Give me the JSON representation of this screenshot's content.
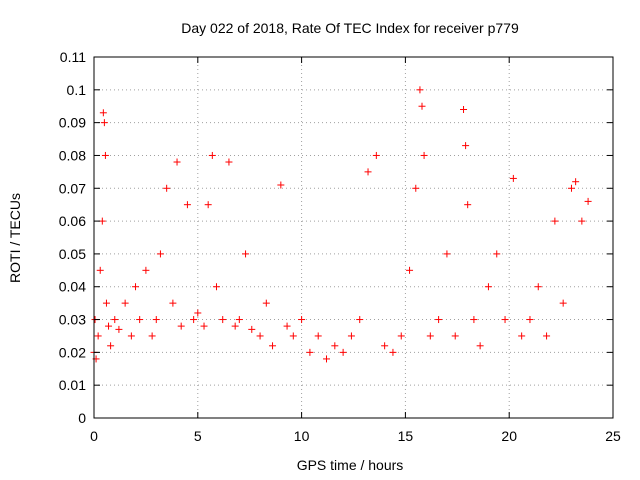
{
  "chart_data": {
    "type": "scatter",
    "title": "Day 022 of 2018, Rate Of TEC Index for receiver p779",
    "xlabel": "GPS time / hours",
    "ylabel": "ROTI / TECUs",
    "xlim": [
      0,
      25
    ],
    "ylim": [
      0,
      0.11
    ],
    "x_ticks": [
      "0",
      "5",
      "10",
      "15",
      "20",
      "25"
    ],
    "y_ticks": [
      "0",
      "0.01",
      "0.02",
      "0.03",
      "0.04",
      "0.05",
      "0.06",
      "0.07",
      "0.08",
      "0.09",
      "0.1",
      "0.11"
    ],
    "grid": true,
    "marker": "+",
    "color": "#ff0000",
    "series": [
      {
        "name": "ROTI",
        "x": [
          0.0,
          0.05,
          0.1,
          0.2,
          0.3,
          0.4,
          0.45,
          0.5,
          0.55,
          0.6,
          0.7,
          0.8,
          1.0,
          1.2,
          1.5,
          1.8,
          2.0,
          2.2,
          2.5,
          2.8,
          3.0,
          3.2,
          3.5,
          3.8,
          4.0,
          4.2,
          4.5,
          4.8,
          5.0,
          5.3,
          5.5,
          5.7,
          5.9,
          6.2,
          6.5,
          6.8,
          7.0,
          7.3,
          7.6,
          8.0,
          8.3,
          8.6,
          9.0,
          9.3,
          9.6,
          10.0,
          10.4,
          10.8,
          11.2,
          11.6,
          12.0,
          12.4,
          12.8,
          13.2,
          13.6,
          14.0,
          14.4,
          14.8,
          15.2,
          15.5,
          15.7,
          15.8,
          15.9,
          16.2,
          16.6,
          17.0,
          17.4,
          17.8,
          17.9,
          18.0,
          18.3,
          18.6,
          19.0,
          19.4,
          19.8,
          20.2,
          20.6,
          21.0,
          21.4,
          21.8,
          22.2,
          22.6,
          23.0,
          23.2,
          23.5,
          23.8
        ],
        "y": [
          0.02,
          0.03,
          0.018,
          0.025,
          0.045,
          0.06,
          0.093,
          0.09,
          0.08,
          0.035,
          0.028,
          0.022,
          0.03,
          0.027,
          0.035,
          0.025,
          0.04,
          0.03,
          0.045,
          0.025,
          0.03,
          0.05,
          0.07,
          0.035,
          0.078,
          0.028,
          0.065,
          0.03,
          0.032,
          0.028,
          0.065,
          0.08,
          0.04,
          0.03,
          0.078,
          0.028,
          0.03,
          0.05,
          0.027,
          0.025,
          0.035,
          0.022,
          0.071,
          0.028,
          0.025,
          0.03,
          0.02,
          0.025,
          0.018,
          0.022,
          0.02,
          0.025,
          0.03,
          0.075,
          0.08,
          0.022,
          0.02,
          0.025,
          0.045,
          0.07,
          0.1,
          0.095,
          0.08,
          0.025,
          0.03,
          0.05,
          0.025,
          0.094,
          0.083,
          0.065,
          0.03,
          0.022,
          0.04,
          0.05,
          0.03,
          0.073,
          0.025,
          0.03,
          0.04,
          0.025,
          0.06,
          0.035,
          0.07,
          0.072,
          0.06,
          0.066
        ]
      }
    ]
  }
}
